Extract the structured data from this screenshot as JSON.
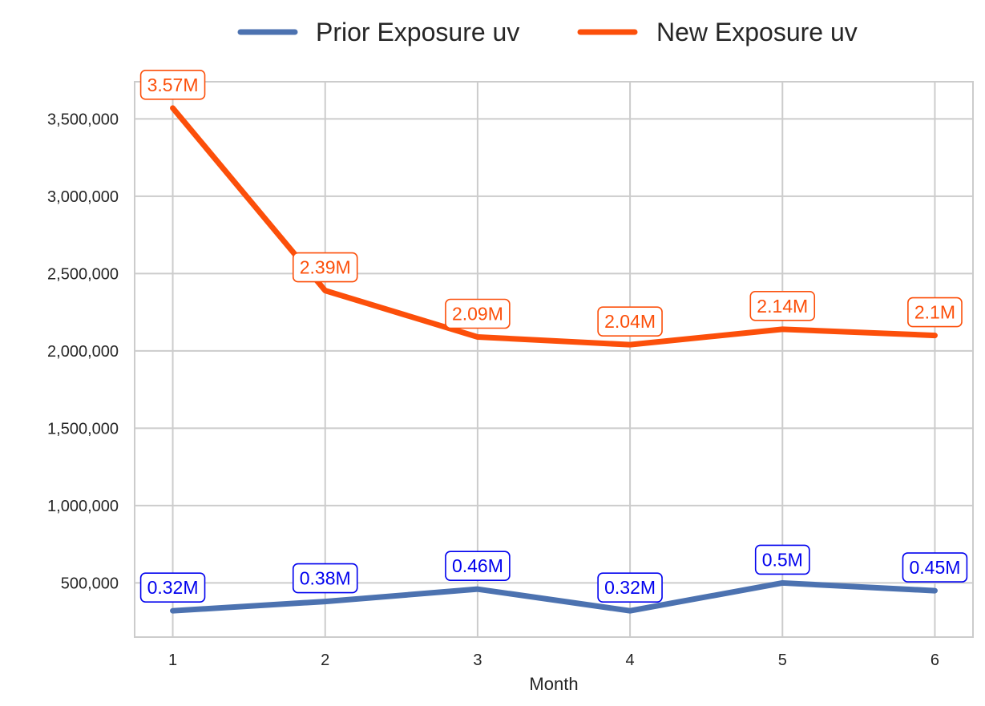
{
  "chart_data": {
    "type": "line",
    "x": [
      1,
      2,
      3,
      4,
      5,
      6
    ],
    "xlabel": "Month",
    "ylabel": "",
    "ylim": [
      150000,
      3740000
    ],
    "yticks": [
      500000,
      1000000,
      1500000,
      2000000,
      2500000,
      3000000,
      3500000
    ],
    "ytick_labels": [
      "500,000",
      "1,000,000",
      "1,500,000",
      "2,000,000",
      "2,500,000",
      "3,000,000",
      "3,500,000"
    ],
    "xtick_labels": [
      "1",
      "2",
      "3",
      "4",
      "5",
      "6"
    ],
    "grid": true,
    "legend_position": "top-center",
    "series": [
      {
        "name": "Prior Exposure uv",
        "color": "#4c72b0",
        "label_color": "#0000ee",
        "values": [
          320000,
          380000,
          460000,
          320000,
          500000,
          450000
        ],
        "labels": [
          "0.32M",
          "0.38M",
          "0.46M",
          "0.32M",
          "0.5M",
          "0.45M"
        ]
      },
      {
        "name": "New Exposure uv",
        "color": "#fc4f0a",
        "label_color": "#fc4f0a",
        "values": [
          3570000,
          2390000,
          2090000,
          2040000,
          2140000,
          2100000
        ],
        "labels": [
          "3.57M",
          "2.39M",
          "2.09M",
          "2.04M",
          "2.14M",
          "2.1M"
        ]
      }
    ]
  }
}
